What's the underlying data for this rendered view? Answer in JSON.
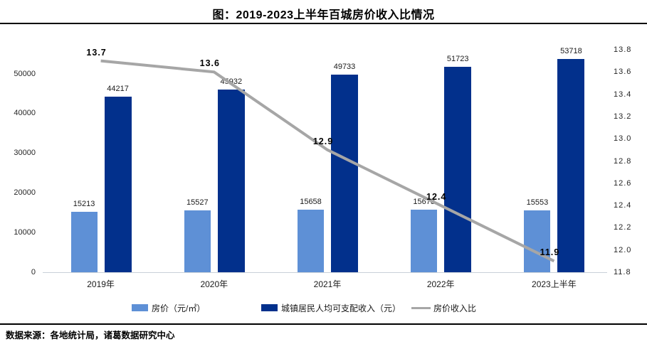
{
  "title": "图：2019-2023上半年百城房价收入比情况",
  "footer": {
    "source": "数据来源：各地统计局，诸葛数据研究中心"
  },
  "colors": {
    "price_bar": "#5E90D6",
    "income_bar": "#02308C",
    "ratio_line": "#A6A6A6",
    "baseline": "#c9d0d8"
  },
  "legend": [
    {
      "label": "房价（元/㎡）",
      "swatch": "bar",
      "series": "price"
    },
    {
      "label": "城镇居民人均可支配收入（元）",
      "swatch": "bar",
      "series": "income"
    },
    {
      "label": "房价收入比",
      "swatch": "line",
      "series": "ratio"
    }
  ],
  "chart_data": {
    "type": "bar",
    "subtype": "grouped-bars-with-line",
    "title": "图：2019-2023上半年百城房价收入比情况",
    "categories": [
      "2019年",
      "2020年",
      "2021年",
      "2022年",
      "2023上半年"
    ],
    "series": [
      {
        "name": "房价（元/㎡）",
        "type": "bar",
        "axis": "left",
        "values": [
          15213,
          15527,
          15658,
          15673,
          15553
        ]
      },
      {
        "name": "城镇居民人均可支配收入（元）",
        "type": "bar",
        "axis": "left",
        "values": [
          44217,
          45932,
          49733,
          51723,
          53718
        ]
      },
      {
        "name": "房价收入比",
        "type": "line",
        "axis": "right",
        "values": [
          13.7,
          13.6,
          12.9,
          12.4,
          11.9
        ]
      }
    ],
    "left_axis": {
      "ticks": [
        0,
        10000,
        20000,
        30000,
        40000,
        50000
      ],
      "min": 0,
      "max": 56000
    },
    "right_axis": {
      "ticks": [
        11.8,
        12.0,
        12.2,
        12.4,
        12.6,
        12.8,
        13.0,
        13.2,
        13.4,
        13.6,
        13.8
      ],
      "min": 11.8,
      "max": 13.8
    },
    "grid": false,
    "legend_position": "bottom",
    "data_labels": true
  }
}
